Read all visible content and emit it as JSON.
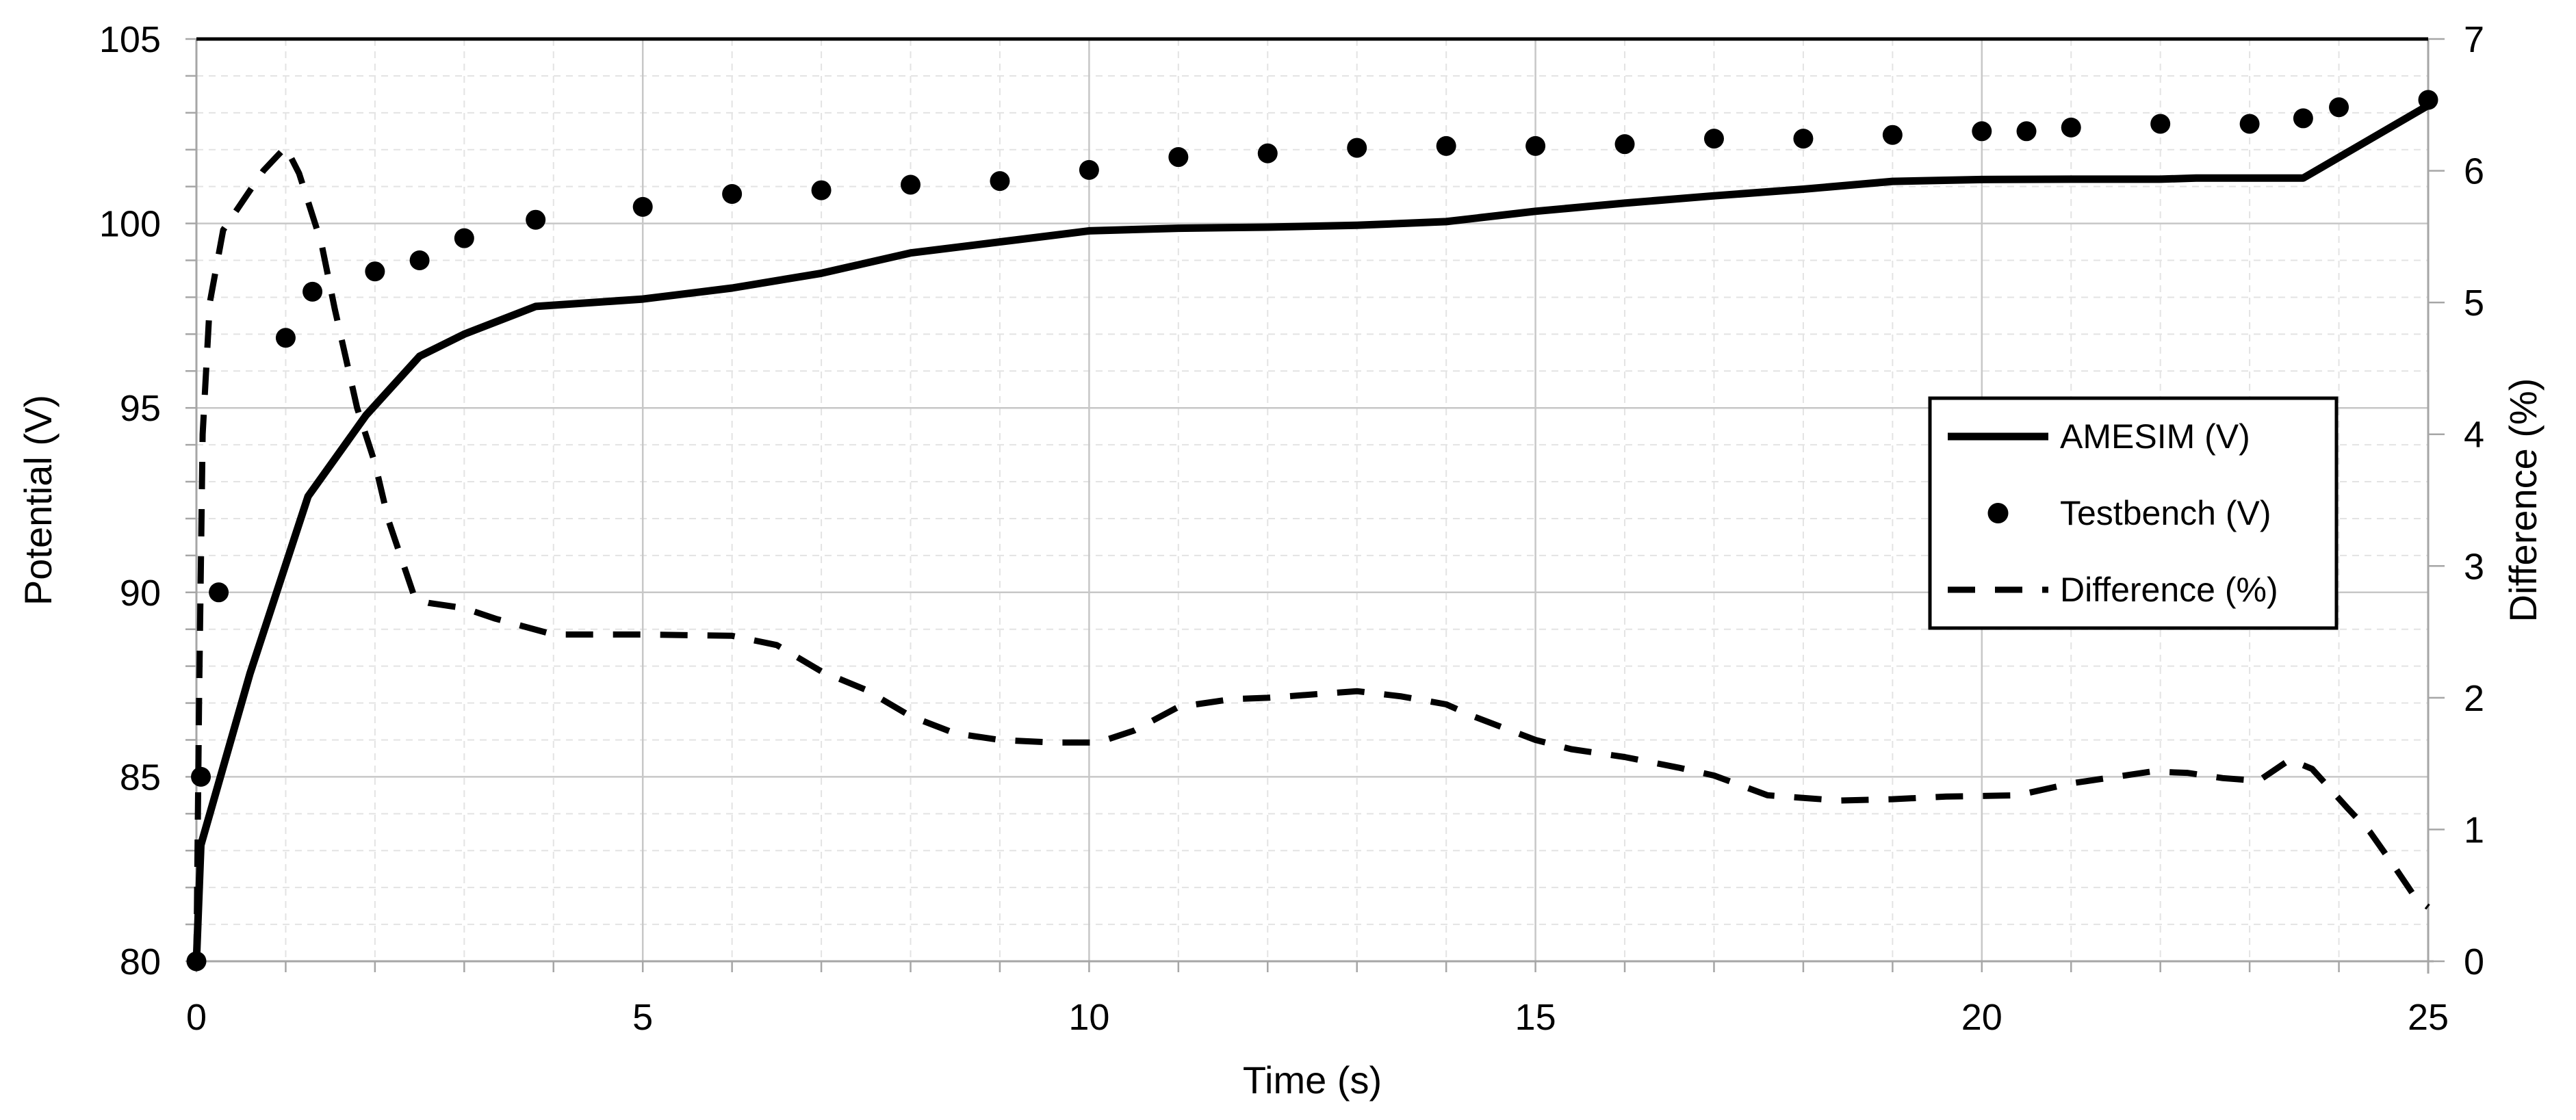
{
  "chart_data": {
    "type": "line",
    "title": "",
    "x_axis": {
      "label": "Time (s)",
      "min": 0,
      "max": 25,
      "major_step": 5,
      "minor_step": 1,
      "tick_labels": [
        "0",
        "5",
        "10",
        "15",
        "20",
        "25"
      ],
      "tick_values": [
        0,
        5,
        10,
        15,
        20,
        25
      ]
    },
    "y_left_axis": {
      "label": "Potential (V)",
      "min": 80,
      "max": 105,
      "major_step": 5,
      "minor_step": 1,
      "tick_labels": [
        "80",
        "85",
        "90",
        "95",
        "100",
        "105"
      ],
      "tick_values": [
        80,
        85,
        90,
        95,
        100,
        105
      ]
    },
    "y_right_axis": {
      "label": "Difference (%)",
      "min": 0,
      "max": 7,
      "tick_step": 1,
      "tick_labels": [
        "0",
        "1",
        "2",
        "3",
        "4",
        "5",
        "6",
        "7"
      ],
      "tick_values": [
        0,
        1,
        2,
        3,
        4,
        5,
        6,
        7
      ]
    },
    "grid": {
      "minor_style": "dashed",
      "major_style": "solid",
      "grid_on": true
    },
    "legend": {
      "position": "middle-right",
      "entries": [
        {
          "label": "AMESIM (V)",
          "marker": "solid-line"
        },
        {
          "label": "Testbench (V)",
          "marker": "dot"
        },
        {
          "label": "Difference (%)",
          "marker": "dashed-line"
        }
      ]
    },
    "series": [
      {
        "name": "AMESIM (V)",
        "type": "line",
        "style": "solid",
        "axis": "left",
        "color": "#000000",
        "points": [
          [
            0,
            80
          ],
          [
            0.05,
            83.15
          ],
          [
            0.6,
            87.8
          ],
          [
            1.25,
            92.6
          ],
          [
            1.9,
            94.8
          ],
          [
            2.5,
            96.4
          ],
          [
            3,
            97.0
          ],
          [
            3.8,
            97.75
          ],
          [
            5,
            97.95
          ],
          [
            6,
            98.25
          ],
          [
            7,
            98.65
          ],
          [
            8,
            99.2
          ],
          [
            9,
            99.5
          ],
          [
            10,
            99.8
          ],
          [
            11,
            99.87
          ],
          [
            12,
            99.9
          ],
          [
            13,
            99.95
          ],
          [
            14,
            100.05
          ],
          [
            15,
            100.33
          ],
          [
            16,
            100.55
          ],
          [
            17,
            100.75
          ],
          [
            18,
            100.93
          ],
          [
            19,
            101.14
          ],
          [
            20,
            101.19
          ],
          [
            21,
            101.2
          ],
          [
            22,
            101.2
          ],
          [
            22.4,
            101.23
          ],
          [
            23.6,
            101.23
          ],
          [
            25,
            103.2
          ]
        ]
      },
      {
        "name": "Testbench (V)",
        "type": "scatter",
        "axis": "left",
        "color": "#000000",
        "points": [
          [
            0,
            80
          ],
          [
            0.05,
            85
          ],
          [
            0.25,
            90
          ],
          [
            1,
            96.9
          ],
          [
            1.3,
            98.15
          ],
          [
            2,
            98.7
          ],
          [
            2.5,
            99.0
          ],
          [
            3,
            99.6
          ],
          [
            3.8,
            100.1
          ],
          [
            5,
            100.45
          ],
          [
            6,
            100.8
          ],
          [
            7,
            100.9
          ],
          [
            8,
            101.05
          ],
          [
            9,
            101.15
          ],
          [
            10,
            101.45
          ],
          [
            11,
            101.8
          ],
          [
            12,
            101.9
          ],
          [
            13,
            102.05
          ],
          [
            14,
            102.1
          ],
          [
            15,
            102.1
          ],
          [
            16,
            102.15
          ],
          [
            17,
            102.3
          ],
          [
            18,
            102.3
          ],
          [
            19,
            102.4
          ],
          [
            20,
            102.5
          ],
          [
            20.5,
            102.5
          ],
          [
            21,
            102.6
          ],
          [
            22,
            102.7
          ],
          [
            23,
            102.7
          ],
          [
            23.6,
            102.85
          ],
          [
            24,
            103.15
          ],
          [
            25,
            103.35
          ]
        ]
      },
      {
        "name": "Difference (%)",
        "type": "line",
        "style": "dashed",
        "axis": "right",
        "color": "#000000",
        "points": [
          [
            0,
            0
          ],
          [
            0.03,
            2.0
          ],
          [
            0.07,
            4.0
          ],
          [
            0.15,
            5.0
          ],
          [
            0.3,
            5.55
          ],
          [
            0.5,
            5.75
          ],
          [
            0.75,
            6.0
          ],
          [
            1,
            6.18
          ],
          [
            1.15,
            5.98
          ],
          [
            1.4,
            5.45
          ],
          [
            1.55,
            4.95
          ],
          [
            1.8,
            4.2
          ],
          [
            2,
            3.78
          ],
          [
            2.15,
            3.35
          ],
          [
            2.3,
            3.05
          ],
          [
            2.45,
            2.75
          ],
          [
            2.6,
            2.72
          ],
          [
            3,
            2.68
          ],
          [
            3.35,
            2.6
          ],
          [
            4,
            2.48
          ],
          [
            5,
            2.48
          ],
          [
            6,
            2.47
          ],
          [
            6.5,
            2.4
          ],
          [
            7,
            2.2
          ],
          [
            7.5,
            2.06
          ],
          [
            8,
            1.86
          ],
          [
            8.5,
            1.73
          ],
          [
            9,
            1.68
          ],
          [
            9.6,
            1.66
          ],
          [
            10.1,
            1.66
          ],
          [
            10.5,
            1.75
          ],
          [
            11,
            1.93
          ],
          [
            11.6,
            1.99
          ],
          [
            12,
            2.0
          ],
          [
            13,
            2.05
          ],
          [
            13.5,
            2.01
          ],
          [
            14,
            1.95
          ],
          [
            14.3,
            1.86
          ],
          [
            15,
            1.68
          ],
          [
            15.4,
            1.61
          ],
          [
            16,
            1.55
          ],
          [
            16.6,
            1.47
          ],
          [
            17,
            1.41
          ],
          [
            17.6,
            1.26
          ],
          [
            18,
            1.24
          ],
          [
            18.4,
            1.22
          ],
          [
            19,
            1.23
          ],
          [
            19.6,
            1.25
          ],
          [
            20.4,
            1.26
          ],
          [
            21,
            1.35
          ],
          [
            21.9,
            1.44
          ],
          [
            22.3,
            1.43
          ],
          [
            22.7,
            1.39
          ],
          [
            23.1,
            1.37
          ],
          [
            23.45,
            1.53
          ],
          [
            23.7,
            1.46
          ],
          [
            24.1,
            1.16
          ],
          [
            24.35,
            0.98
          ],
          [
            24.6,
            0.74
          ],
          [
            24.85,
            0.49
          ],
          [
            25,
            0.41
          ]
        ]
      }
    ],
    "colors": {
      "background": "#FFFFFF",
      "series": "#000000",
      "grid_minor": "#E3E3E3",
      "grid_major": "#C7C7C7",
      "axis_line": "#A6A6A6",
      "top_border": "#000000",
      "text": "#000000",
      "legend_border": "#000000",
      "legend_background": "#FFFFFF"
    }
  }
}
